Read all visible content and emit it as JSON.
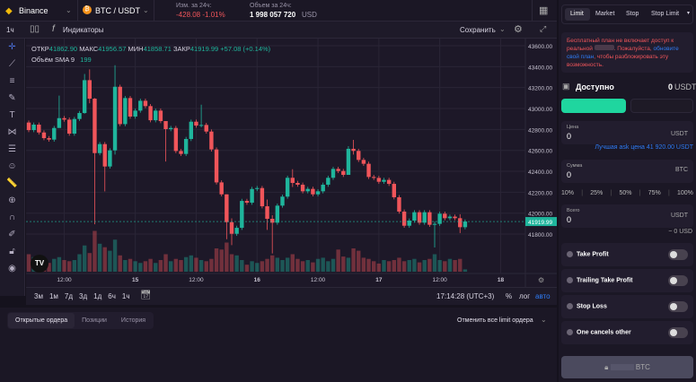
{
  "header": {
    "exchange": "Binance",
    "pair": "BTC / USDT",
    "change_label": "Изм. за 24ч:",
    "change_value": "-428.08 -1.01%",
    "volume_label": "Объем за 24ч:",
    "volume_value": "1 998 057 720",
    "volume_currency": "USD"
  },
  "toolbar": {
    "interval": "1ч",
    "indicators": "Индикаторы",
    "save": "Сохранить"
  },
  "legend": {
    "open_label": "ОТКР",
    "open": "41862.90",
    "high_label": "МАКС",
    "high": "41956.57",
    "low_label": "МИН",
    "low": "41858.71",
    "close_label": "ЗАКР",
    "close": "41919.99",
    "change": "+57.08 (+0.14%)",
    "vol_label": "Объём SMA 9",
    "vol": "199"
  },
  "colors": {
    "up": "#1fb59c",
    "down": "#f0555a",
    "accent": "#1fd69f",
    "link": "#2f7cf6"
  },
  "chart_data": {
    "type": "candlestick",
    "ylim": [
      41500,
      43700
    ],
    "yticks": [
      "43600.00",
      "43400.00",
      "43200.00",
      "43000.00",
      "42800.00",
      "42600.00",
      "42400.00",
      "42200.00",
      "42000.00",
      "41800.00"
    ],
    "ytick_values": [
      43600,
      43400,
      43200,
      43000,
      42800,
      42600,
      42400,
      42200,
      42000,
      41800
    ],
    "xticks": [
      {
        "label": "12:00",
        "i": 7
      },
      {
        "label": "15",
        "i": 21
      },
      {
        "label": "12:00",
        "i": 33
      },
      {
        "label": "16",
        "i": 45
      },
      {
        "label": "12:00",
        "i": 57
      },
      {
        "label": "17",
        "i": 69
      },
      {
        "label": "12:00",
        "i": 81
      },
      {
        "label": "18",
        "i": 93
      }
    ],
    "last_price": 41919.99,
    "last_price_label": "41919.99",
    "first_open": 42866,
    "close": [
      42794,
      42846,
      42771,
      42717,
      42703,
      42814,
      42908,
      42894,
      42760,
      42900,
      42957,
      43271,
      43094,
      42574,
      42660,
      42446,
      42600,
      43208,
      42851,
      43100,
      42923,
      42980,
      43074,
      43023,
      42888,
      42980,
      42880,
      42803,
      42814,
      42594,
      42566,
      42709,
      42874,
      42837,
      42843,
      42780,
      42609,
      42294,
      42180,
      41914,
      41803,
      41860,
      42117,
      42100,
      42231,
      42240,
      42066,
      41946,
      41909,
      42072,
      42158,
      42338,
      42289,
      42272,
      42209,
      42232,
      42180,
      42209,
      42272,
      42338,
      42423,
      42403,
      42366,
      42615,
      42595,
      42509,
      42472,
      42346,
      42337,
      42300,
      42318,
      42280,
      42152,
      42015,
      41880,
      41929,
      42009,
      41909,
      42009,
      41889,
      41898,
      41995,
      41952,
      41967,
      41952,
      41866,
      41920
    ],
    "wicks": {
      "6": [
        43123,
        42880
      ],
      "11": [
        43330,
        42950
      ],
      "12": [
        43374,
        43050
      ],
      "13": [
        43100,
        41894
      ],
      "15": [
        42680,
        42208
      ],
      "17": [
        43414,
        42560
      ],
      "27": [
        42830,
        42494
      ],
      "34": [
        43037,
        42820
      ],
      "39": [
        42180,
        41751
      ],
      "40": [
        41950,
        41694
      ],
      "47": [
        42130,
        41840
      ],
      "48": [
        41980,
        41615
      ],
      "52": [
        42420,
        42250
      ],
      "63": [
        42640,
        42380
      ],
      "64": [
        42700,
        42560
      ],
      "80": [
        41920,
        41672
      ],
      "85": [
        41990,
        41810
      ]
    },
    "volume": [
      30,
      25,
      20,
      18,
      15,
      22,
      25,
      20,
      18,
      20,
      30,
      45,
      32,
      70,
      48,
      42,
      36,
      55,
      28,
      20,
      22,
      18,
      15,
      18,
      22,
      15,
      20,
      30,
      18,
      22,
      20,
      25,
      28,
      24,
      20,
      18,
      22,
      40,
      38,
      50,
      30,
      28,
      20,
      12,
      18,
      15,
      18,
      22,
      28,
      24,
      20,
      24,
      30,
      22,
      18,
      20,
      16,
      22,
      24,
      18,
      22,
      38,
      26,
      24,
      40,
      36,
      24,
      22,
      18,
      14,
      20,
      18,
      20,
      24,
      18,
      20,
      22,
      16,
      20,
      22,
      30,
      20,
      18,
      22,
      20,
      22,
      4
    ]
  },
  "timebar": {
    "ranges": [
      "3м",
      "1м",
      "7д",
      "3д",
      "1д",
      "6ч",
      "1ч"
    ],
    "clock": "17:14:28 (UTC+3)",
    "percent": "%",
    "log": "лог",
    "auto": "авто"
  },
  "orders": {
    "tabs": [
      "Открытые ордера",
      "Позиции",
      "История"
    ],
    "cancel_all": "Отменить все limit ордера"
  },
  "order_form": {
    "tabs": [
      "Limit",
      "Market",
      "Stop",
      "Stop Limit"
    ],
    "warning_1": "Бесплатный план не включает доступ к реальной",
    "warning_2": ". Пожалуйста,",
    "warning_link": "обновите свой план",
    "warning_3": ", чтобы разблокировать эту возможность.",
    "available_label": "Доступно",
    "available_value": "0",
    "available_currency": "USDT",
    "price_label": "Цена",
    "price_value": "0",
    "price_currency": "USDT",
    "best_ask": "Лучшая ask цена 41 920.00 USDT",
    "amount_label": "Сумма",
    "amount_value": "0",
    "amount_currency": "BTC",
    "percents": [
      "10%",
      "25%",
      "50%",
      "75%",
      "100%"
    ],
    "total_label": "Всего",
    "total_value": "0",
    "total_currency": "USDT",
    "total_usd": "~ 0 USD",
    "toggles": [
      {
        "label": "Take Profit",
        "on": false
      },
      {
        "label": "Trailing Take Profit",
        "on": false
      },
      {
        "label": "Stop Loss",
        "on": false
      },
      {
        "label": "One cancels other",
        "on": false
      }
    ],
    "submit_currency": "BTC"
  }
}
